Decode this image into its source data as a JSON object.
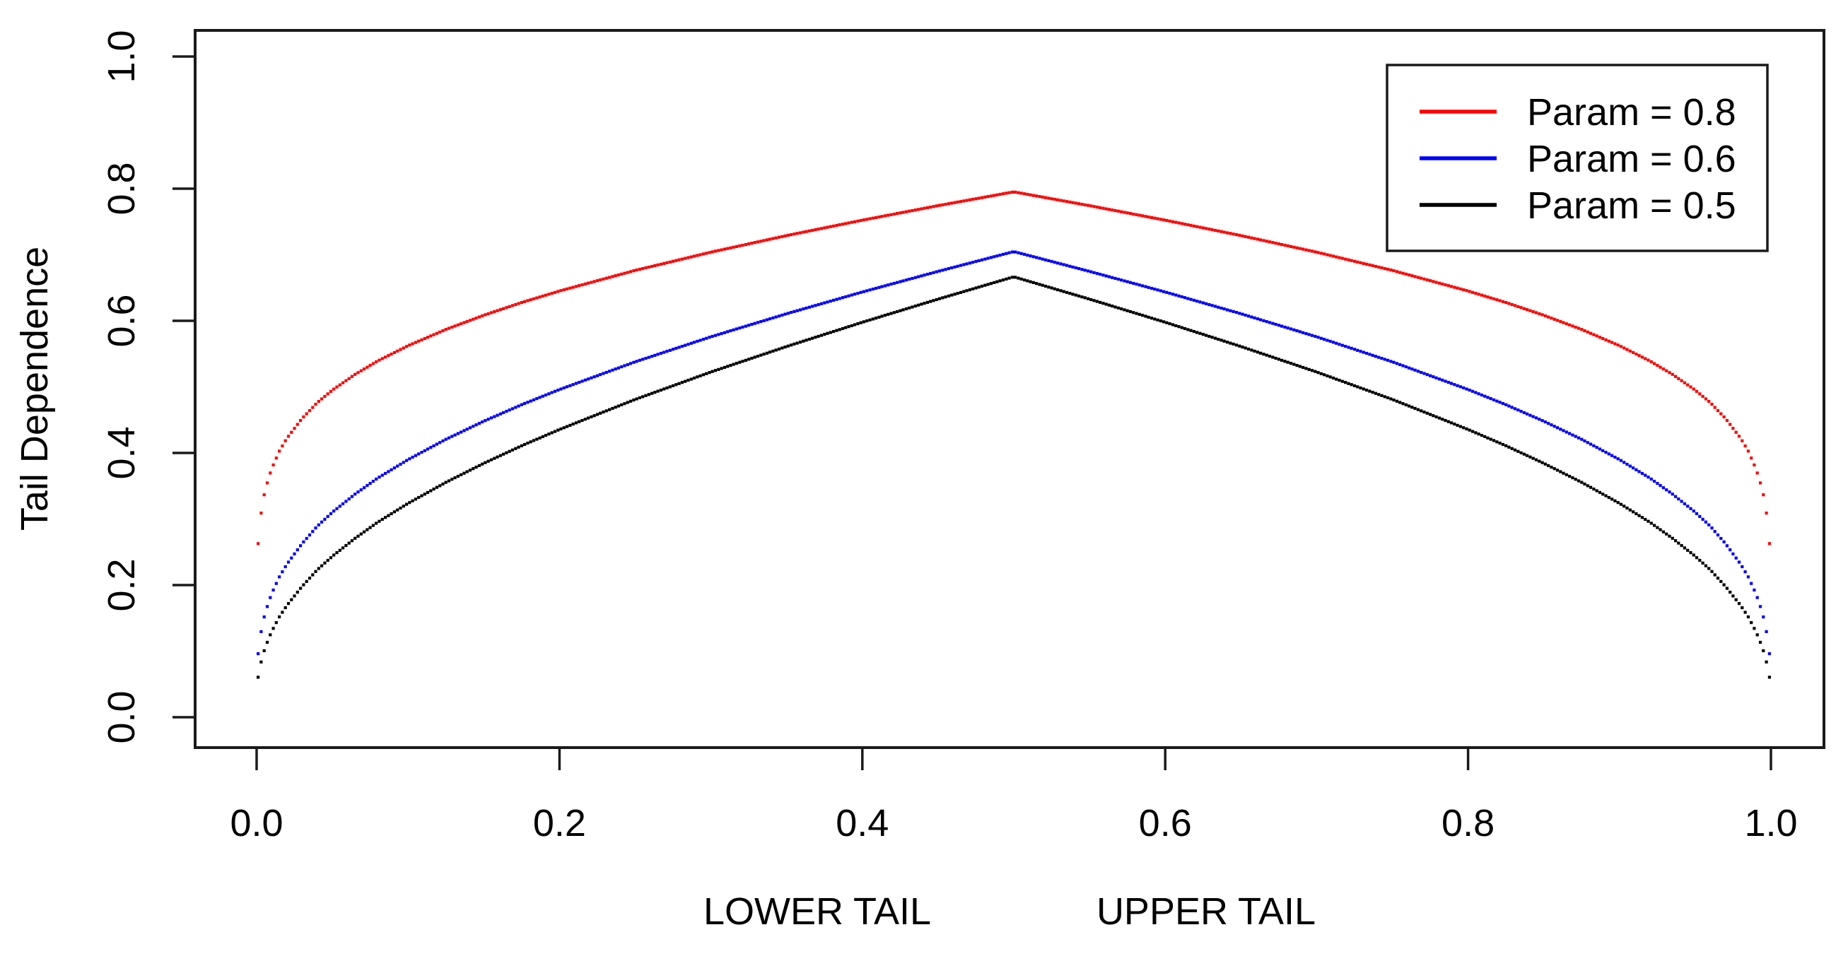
{
  "chart_data": {
    "type": "scatter",
    "title": "",
    "ylabel": "Tail Dependence",
    "xlabel_left": "LOWER TAIL",
    "xlabel_right": "UPPER TAIL",
    "xlim": [
      0.0,
      1.0
    ],
    "ylim": [
      0.0,
      1.0
    ],
    "grid": "off",
    "x_tick_values": [
      0.0,
      0.2,
      0.4,
      0.6,
      0.8,
      1.0
    ],
    "x_tick_labels": [
      "0.0",
      "0.2",
      "0.4",
      "0.6",
      "0.8",
      "1.0"
    ],
    "y_tick_values": [
      0.0,
      0.2,
      0.4,
      0.6,
      0.8,
      1.0
    ],
    "y_tick_labels": [
      "0.0",
      "0.2",
      "0.4",
      "0.6",
      "0.8",
      "1.0"
    ],
    "point_style": "small-square-dots",
    "u_min": 0.001,
    "u_step": 0.002,
    "points_per_curve": 500,
    "symmetry": "lambda(u) = lambda(1-u), peak at u = 0.5",
    "series": [
      {
        "name": "Param = 0.8",
        "color": "#ff0000",
        "peak_value": 0.795,
        "anchors_u": [
          0.001,
          0.0025,
          0.005,
          0.0075,
          0.01,
          0.015,
          0.02,
          0.03,
          0.04,
          0.05,
          0.065,
          0.08,
          0.1,
          0.125,
          0.15,
          0.175,
          0.2,
          0.25,
          0.3,
          0.35,
          0.4,
          0.45,
          0.5
        ],
        "anchors_lambda": [
          0.2628,
          0.3021,
          0.3367,
          0.3592,
          0.3766,
          0.4028,
          0.4223,
          0.4521,
          0.4761,
          0.4951,
          0.5189,
          0.5393,
          0.5623,
          0.5869,
          0.6084,
          0.6277,
          0.6451,
          0.6763,
          0.7039,
          0.729,
          0.7523,
          0.7743,
          0.7952
        ]
      },
      {
        "name": "Param = 0.6",
        "color": "#0000ff",
        "peak_value": 0.705,
        "anchors_u": [
          0.001,
          0.0025,
          0.005,
          0.0075,
          0.01,
          0.015,
          0.02,
          0.03,
          0.04,
          0.05,
          0.065,
          0.08,
          0.1,
          0.125,
          0.15,
          0.175,
          0.2,
          0.25,
          0.3,
          0.35,
          0.4,
          0.45,
          0.5
        ],
        "anchors_lambda": [
          0.0962,
          0.124,
          0.1518,
          0.1714,
          0.1875,
          0.2124,
          0.2317,
          0.2627,
          0.289,
          0.3102,
          0.3377,
          0.362,
          0.3899,
          0.4206,
          0.448,
          0.473,
          0.496,
          0.5379,
          0.5758,
          0.6107,
          0.6436,
          0.6748,
          0.7048
        ]
      },
      {
        "name": "Param = 0.5",
        "color": "#000000",
        "peak_value": 0.667,
        "anchors_u": [
          0.001,
          0.0025,
          0.005,
          0.0075,
          0.01,
          0.015,
          0.02,
          0.03,
          0.04,
          0.05,
          0.065,
          0.08,
          0.1,
          0.125,
          0.15,
          0.175,
          0.2,
          0.25,
          0.3,
          0.35,
          0.4,
          0.45,
          0.5
        ],
        "anchors_lambda": [
          0.0605,
          0.0794,
          0.1006,
          0.1165,
          0.1301,
          0.1519,
          0.1692,
          0.1979,
          0.2231,
          0.2436,
          0.2708,
          0.2952,
          0.3237,
          0.3555,
          0.3843,
          0.4109,
          0.4355,
          0.481,
          0.5225,
          0.5611,
          0.5978,
          0.6328,
          0.6666
        ]
      }
    ],
    "legend": {
      "position": "topright",
      "entries": [
        "Param = 0.8",
        "Param = 0.6",
        "Param = 0.5"
      ],
      "colors": [
        "#ff0000",
        "#0000ff",
        "#000000"
      ]
    },
    "colors": {
      "background": "#ffffff",
      "axis": "#000000"
    }
  }
}
